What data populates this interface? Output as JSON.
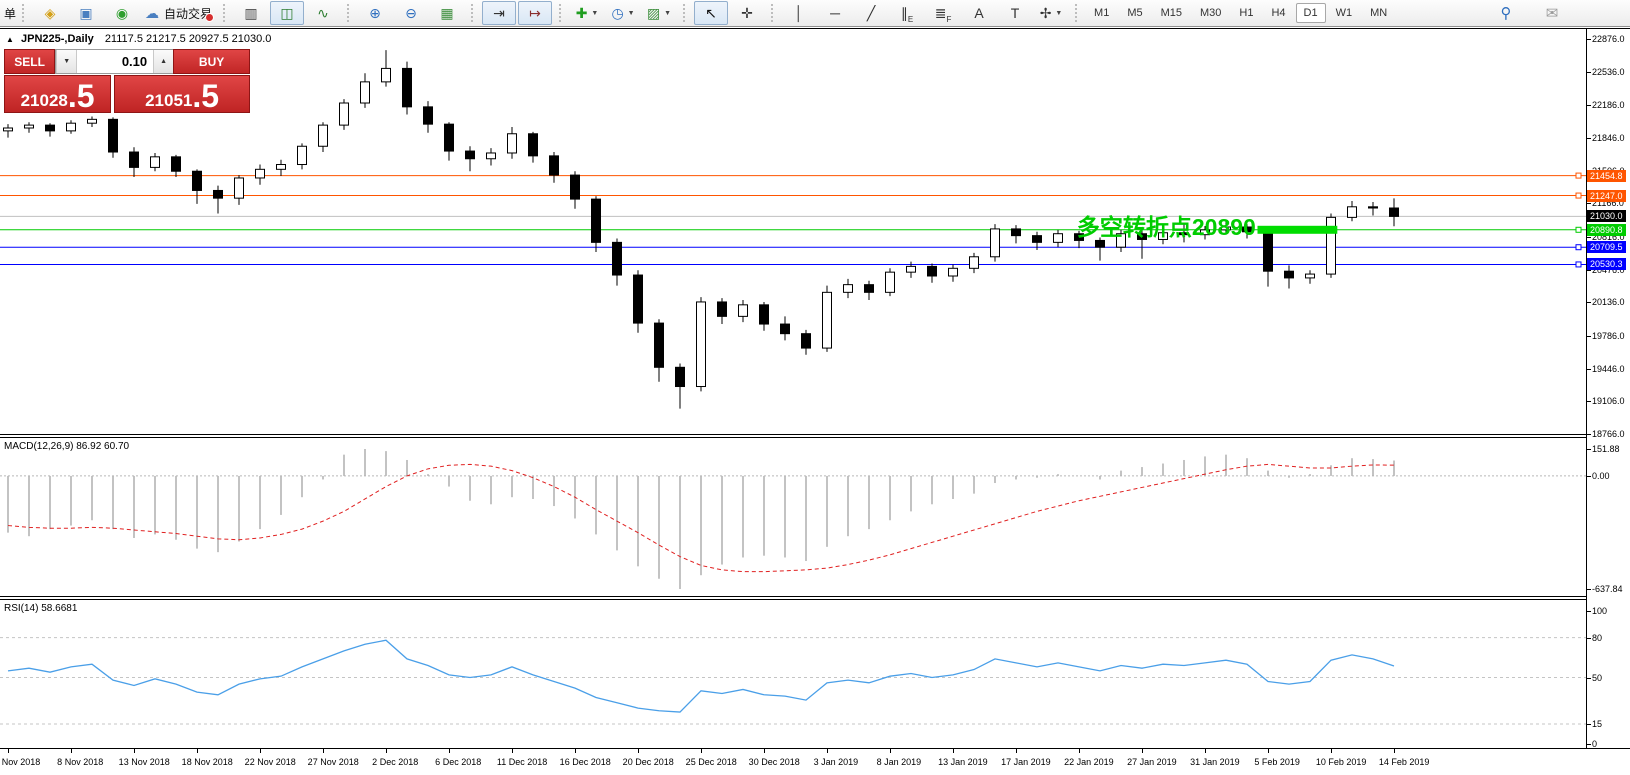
{
  "toolbar": {
    "new_order_label": "单",
    "groups": [
      {
        "items": [
          {
            "name": "new-chart",
            "glyph": "◈",
            "color": "#D4A017"
          },
          {
            "name": "profiles",
            "glyph": "▣",
            "color": "#4A7FC0"
          },
          {
            "name": "signals",
            "glyph": "◉",
            "color": "#2E9E2E"
          },
          {
            "name": "autotrading",
            "glyph": "☁",
            "color": "#4A7FC0",
            "label": "自动交易",
            "badge": true
          }
        ]
      },
      {
        "items": [
          {
            "name": "bar-chart",
            "glyph": "▥",
            "color": "#444444"
          },
          {
            "name": "candlestick-chart",
            "glyph": "◫",
            "color": "#2E7D32",
            "active": true
          },
          {
            "name": "line-chart",
            "glyph": "∿",
            "color": "#2E7D32"
          }
        ]
      },
      {
        "items": [
          {
            "name": "zoom-in",
            "glyph": "⊕",
            "color": "#2F6FBF"
          },
          {
            "name": "zoom-out",
            "glyph": "⊖",
            "color": "#2F6FBF"
          },
          {
            "name": "tile-windows",
            "glyph": "▦",
            "color": "#3D8E3D"
          }
        ]
      },
      {
        "items": [
          {
            "name": "auto-scroll",
            "glyph": "⇥",
            "color": "#333333",
            "active": true
          },
          {
            "name": "chart-shift",
            "glyph": "↦",
            "color": "#8A2E2E",
            "active": true
          }
        ]
      },
      {
        "items": [
          {
            "name": "indicators",
            "glyph": "✚",
            "color": "#1F9D1F",
            "dropdown": true
          },
          {
            "name": "periods",
            "glyph": "◷",
            "color": "#2F6FBF",
            "dropdown": true
          },
          {
            "name": "templates",
            "glyph": "▨",
            "color": "#3D8E3D",
            "dropdown": true
          }
        ]
      },
      {
        "items": [
          {
            "name": "cursor",
            "glyph": "↖",
            "color": "#111111",
            "active": true
          },
          {
            "name": "crosshair",
            "glyph": "✛",
            "color": "#333333"
          }
        ]
      },
      {
        "items": [
          {
            "name": "vertical-line",
            "glyph": "│",
            "color": "#333333"
          },
          {
            "name": "horizontal-line",
            "glyph": "─",
            "color": "#333333"
          },
          {
            "name": "trendline",
            "glyph": "╱",
            "color": "#333333"
          },
          {
            "name": "equidistant-channel",
            "glyph": "∥",
            "sub": "E",
            "color": "#333333"
          },
          {
            "name": "fibonacci",
            "glyph": "≣",
            "sub": "F",
            "color": "#333333"
          },
          {
            "name": "text",
            "glyph": "A",
            "color": "#333333"
          },
          {
            "name": "text-label",
            "glyph": "T",
            "color": "#333333"
          },
          {
            "name": "arrows",
            "glyph": "✢",
            "color": "#333333",
            "dropdown": true
          }
        ]
      }
    ],
    "timeframes": [
      "M1",
      "M5",
      "M15",
      "M30",
      "H1",
      "H4",
      "D1",
      "W1",
      "MN"
    ],
    "active_timeframe": "D1",
    "right_icons": [
      {
        "name": "search",
        "glyph": "⚲",
        "color": "#2F6FBF"
      },
      {
        "name": "chat",
        "glyph": "✉",
        "color": "#999999"
      }
    ]
  },
  "title_bar": {
    "collapse_glyph": "▲",
    "symbol_period": "JPN225-,Daily",
    "ohlc": "21117.5 21217.5 20927.5 21030.0"
  },
  "trade_panel": {
    "sell_label": "SELL",
    "buy_label": "BUY",
    "volume": "0.10",
    "spin_down_glyph": "▼",
    "spin_up_glyph": "▲",
    "sell_price": {
      "main": "21028",
      "big": ".5"
    },
    "buy_price": {
      "main": "21051",
      "big": ".5"
    }
  },
  "indicators": {
    "macd_label": "MACD(12,26,9) 86.92 60.70",
    "rsi_label": "RSI(14) 58.6681"
  },
  "chart_data": {
    "type": "candlestick",
    "symbol": "JPN225",
    "period": "Daily",
    "candles_per_label": 3,
    "x_labels": [
      "4 Nov 2018",
      "8 Nov 2018",
      "13 Nov 2018",
      "18 Nov 2018",
      "22 Nov 2018",
      "27 Nov 2018",
      "2 Dec 2018",
      "6 Dec 2018",
      "11 Dec 2018",
      "16 Dec 2018",
      "20 Dec 2018",
      "25 Dec 2018",
      "30 Dec 2018",
      "3 Jan 2019",
      "8 Jan 2019",
      "13 Jan 2019",
      "17 Jan 2019",
      "22 Jan 2019",
      "27 Jan 2019",
      "31 Jan 2019",
      "5 Feb 2019",
      "10 Feb 2019",
      "14 Feb 2019"
    ],
    "price_axis_ticks": [
      22876.0,
      22536.0,
      22186.0,
      21846.0,
      21506.0,
      21166.0,
      20816.0,
      20476.0,
      20136.0,
      19786.0,
      19446.0,
      19106.0,
      18766.0
    ],
    "candles": [
      [
        21920,
        21990,
        21850,
        21950
      ],
      [
        21950,
        22010,
        21900,
        21980
      ],
      [
        21980,
        22000,
        21860,
        21920
      ],
      [
        21920,
        22030,
        21890,
        22000
      ],
      [
        22000,
        22070,
        21960,
        22040
      ],
      [
        22040,
        22060,
        21640,
        21700
      ],
      [
        21700,
        21750,
        21440,
        21540
      ],
      [
        21540,
        21690,
        21500,
        21650
      ],
      [
        21650,
        21670,
        21440,
        21500
      ],
      [
        21500,
        21520,
        21160,
        21300
      ],
      [
        21300,
        21350,
        21060,
        21220
      ],
      [
        21220,
        21460,
        21150,
        21430
      ],
      [
        21430,
        21570,
        21360,
        21520
      ],
      [
        21520,
        21620,
        21450,
        21570
      ],
      [
        21570,
        21790,
        21520,
        21760
      ],
      [
        21760,
        22010,
        21700,
        21980
      ],
      [
        21980,
        22250,
        21930,
        22210
      ],
      [
        22210,
        22520,
        22160,
        22430
      ],
      [
        22430,
        22760,
        22380,
        22570
      ],
      [
        22570,
        22640,
        22090,
        22170
      ],
      [
        22170,
        22230,
        21900,
        21990
      ],
      [
        21990,
        22010,
        21610,
        21710
      ],
      [
        21710,
        21760,
        21500,
        21630
      ],
      [
        21630,
        21740,
        21560,
        21690
      ],
      [
        21690,
        21960,
        21630,
        21890
      ],
      [
        21890,
        21910,
        21590,
        21660
      ],
      [
        21660,
        21700,
        21380,
        21460
      ],
      [
        21460,
        21500,
        21110,
        21210
      ],
      [
        21210,
        21240,
        20660,
        20760
      ],
      [
        20760,
        20800,
        20310,
        20420
      ],
      [
        20420,
        20470,
        19820,
        19920
      ],
      [
        19920,
        19960,
        19310,
        19460
      ],
      [
        19460,
        19500,
        19030,
        19260
      ],
      [
        19260,
        20190,
        19210,
        20140
      ],
      [
        20140,
        20180,
        19910,
        19990
      ],
      [
        19990,
        20160,
        19930,
        20110
      ],
      [
        20110,
        20140,
        19840,
        19910
      ],
      [
        19910,
        19990,
        19740,
        19810
      ],
      [
        19810,
        19850,
        19590,
        19660
      ],
      [
        19660,
        20310,
        19620,
        20240
      ],
      [
        20240,
        20380,
        20180,
        20320
      ],
      [
        20320,
        20360,
        20160,
        20240
      ],
      [
        20240,
        20490,
        20200,
        20450
      ],
      [
        20450,
        20560,
        20390,
        20510
      ],
      [
        20510,
        20540,
        20340,
        20410
      ],
      [
        20410,
        20530,
        20350,
        20490
      ],
      [
        20490,
        20650,
        20440,
        20610
      ],
      [
        20610,
        20950,
        20560,
        20900
      ],
      [
        20900,
        20940,
        20750,
        20830
      ],
      [
        20830,
        20870,
        20680,
        20760
      ],
      [
        20760,
        20890,
        20710,
        20850
      ],
      [
        20850,
        20880,
        20700,
        20780
      ],
      [
        20780,
        20810,
        20570,
        20710
      ],
      [
        20710,
        20890,
        20660,
        20850
      ],
      [
        20850,
        20880,
        20590,
        20790
      ],
      [
        20790,
        20900,
        20740,
        20860
      ],
      [
        20860,
        20950,
        20760,
        20840
      ],
      [
        20840,
        20930,
        20790,
        20890
      ],
      [
        20890,
        20970,
        20840,
        20920
      ],
      [
        20920,
        20950,
        20800,
        20870
      ],
      [
        20870,
        20890,
        20300,
        20460
      ],
      [
        20460,
        20520,
        20280,
        20390
      ],
      [
        20390,
        20470,
        20330,
        20430
      ],
      [
        20430,
        21060,
        20390,
        21020
      ],
      [
        21020,
        21190,
        20980,
        21130
      ],
      [
        21130,
        21180,
        21040,
        21117.5
      ],
      [
        21117.5,
        21217.5,
        20927.5,
        21030
      ]
    ],
    "levels": [
      {
        "value": 21454.8,
        "color": "#FF5500"
      },
      {
        "value": 21247.0,
        "color": "#FF5500"
      },
      {
        "value": 21030.0,
        "color": "#C0C0C0",
        "label_bg": "#000000",
        "current": true
      },
      {
        "value": 20890.8,
        "color": "#00CC00"
      },
      {
        "value": 20709.5,
        "color": "#0000FF"
      },
      {
        "value": 20530.3,
        "color": "#0000FF"
      }
    ],
    "annotation": {
      "text": "多空转折点20890",
      "color": "#00CC00",
      "anchor_index": 50.9,
      "at_value": 20890.8
    },
    "highlight_segment": {
      "value": 20890.8,
      "from_index": 59.5,
      "to_index": 63.3,
      "height": 8,
      "color": "#00DD00"
    },
    "macd": {
      "label": "MACD(12,26,9) 86.92 60.70",
      "axis_ticks": [
        "151.88",
        "0.00",
        "-637.84"
      ],
      "axis_tick_values": [
        151.88,
        0,
        -637.84
      ],
      "hist_color": "#B4B4B4",
      "signal_color": "#E02020",
      "histogram": [
        -320,
        -340,
        -300,
        -280,
        -250,
        -300,
        -350,
        -330,
        -360,
        -410,
        -430,
        -370,
        -300,
        -220,
        -120,
        -20,
        120,
        151.88,
        140,
        90,
        10,
        -60,
        -140,
        -160,
        -120,
        -130,
        -170,
        -240,
        -330,
        -420,
        -510,
        -580,
        -637.84,
        -560,
        -500,
        -460,
        -450,
        -460,
        -480,
        -400,
        -340,
        -300,
        -250,
        -200,
        -160,
        -130,
        -100,
        -40,
        -20,
        -10,
        10,
        0,
        -20,
        30,
        50,
        70,
        90,
        110,
        120,
        100,
        30,
        -10,
        10,
        60,
        100,
        95,
        86.92
      ],
      "signal": [
        -280,
        -290,
        -295,
        -295,
        -290,
        -295,
        -305,
        -315,
        -325,
        -340,
        -355,
        -360,
        -350,
        -330,
        -300,
        -255,
        -200,
        -130,
        -60,
        0,
        40,
        60,
        65,
        55,
        30,
        -10,
        -60,
        -120,
        -190,
        -255,
        -320,
        -390,
        -455,
        -505,
        -530,
        -540,
        -540,
        -535,
        -530,
        -520,
        -500,
        -475,
        -445,
        -410,
        -375,
        -340,
        -305,
        -270,
        -235,
        -200,
        -170,
        -140,
        -115,
        -90,
        -65,
        -40,
        -15,
        10,
        35,
        55,
        65,
        55,
        45,
        45,
        55,
        62,
        60.7
      ]
    },
    "rsi": {
      "label": "RSI(14) 58.6681",
      "axis_ticks": [
        100,
        80,
        50,
        15,
        0
      ],
      "level_lines": [
        80,
        50,
        15
      ],
      "color": "#4A9FE8",
      "values": [
        55,
        57,
        54,
        58,
        60,
        48,
        44,
        49,
        45,
        39,
        37,
        45,
        49,
        51,
        58,
        64,
        70,
        75,
        78,
        64,
        59,
        52,
        50,
        52,
        58,
        52,
        47,
        42,
        35,
        31,
        27,
        25,
        24,
        40,
        38,
        41,
        37,
        36,
        33,
        46,
        48,
        46,
        51,
        53,
        50,
        52,
        56,
        64,
        61,
        58,
        61,
        58,
        55,
        59,
        57,
        60,
        59,
        61,
        63,
        60,
        47,
        45,
        47,
        63,
        67,
        64,
        58.67
      ]
    }
  }
}
